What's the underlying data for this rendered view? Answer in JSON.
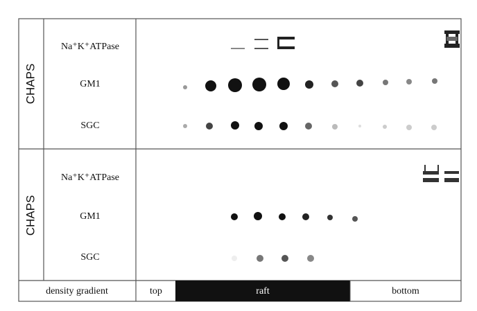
{
  "panels": [
    {
      "side_label": "CHAPS",
      "rows": [
        "Na⁺K⁺ATPase",
        "GM1",
        "SGC"
      ]
    },
    {
      "side_label": "CHAPS",
      "rows": [
        "Na⁺K⁺ATPase",
        "GM1",
        "SGC"
      ]
    }
  ],
  "footer": {
    "label": "density gradient",
    "sections": [
      "top",
      "raft",
      "bottom"
    ]
  }
}
